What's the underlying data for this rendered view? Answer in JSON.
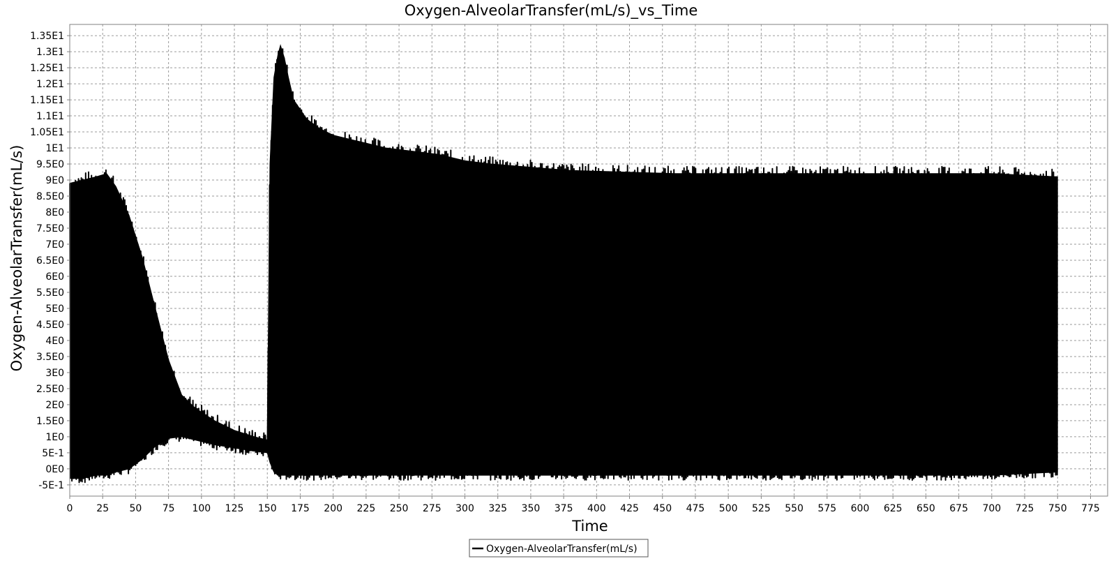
{
  "chart_data": {
    "type": "line",
    "title": "Oxygen-AlveolarTransfer(mL/s)_vs_Time",
    "xlabel": "Time",
    "ylabel": "Oxygen-AlveolarTransfer(mL/s)",
    "xlim": [
      0,
      788
    ],
    "ylim": [
      -0.85,
      13.85
    ],
    "grid": true,
    "legend_position": "bottom-center",
    "x_ticks": [
      0,
      25,
      50,
      75,
      100,
      125,
      150,
      175,
      200,
      225,
      250,
      275,
      300,
      325,
      350,
      375,
      400,
      425,
      450,
      475,
      500,
      525,
      550,
      575,
      600,
      625,
      650,
      675,
      700,
      725,
      750,
      775
    ],
    "x_tick_labels": [
      "0",
      "25",
      "50",
      "75",
      "100",
      "125",
      "150",
      "175",
      "200",
      "225",
      "250",
      "275",
      "300",
      "325",
      "350",
      "375",
      "400",
      "425",
      "450",
      "475",
      "500",
      "525",
      "550",
      "575",
      "600",
      "625",
      "650",
      "675",
      "700",
      "725",
      "750",
      "775"
    ],
    "y_ticks": [
      -0.5,
      0,
      0.5,
      1,
      1.5,
      2,
      2.5,
      3,
      3.5,
      4,
      4.5,
      5,
      5.5,
      6,
      6.5,
      7,
      7.5,
      8,
      8.5,
      9,
      9.5,
      10,
      10.5,
      11,
      11.5,
      12,
      12.5,
      13,
      13.5
    ],
    "y_tick_labels": [
      "-5E-1",
      "0E0",
      "5E-1",
      "1E0",
      "1.5E0",
      "2E0",
      "2.5E0",
      "3E0",
      "3.5E0",
      "4E0",
      "4.5E0",
      "5E0",
      "5.5E0",
      "6E0",
      "6.5E0",
      "7E0",
      "7.5E0",
      "8E0",
      "8.5E0",
      "9E0",
      "9.5E0",
      "1E1",
      "1.05E1",
      "1.1E1",
      "1.15E1",
      "1.2E1",
      "1.25E1",
      "1.3E1",
      "1.35E1"
    ],
    "series": [
      {
        "name": "Oxygen-AlveolarTransfer(mL/s)",
        "color": "#000000",
        "x": [
          0,
          10,
          20,
          28,
          35,
          45,
          55,
          65,
          75,
          85,
          95,
          110,
          125,
          140,
          150,
          152,
          155,
          158,
          160,
          163,
          166,
          170,
          180,
          190,
          200,
          220,
          240,
          260,
          280,
          300,
          320,
          350,
          380,
          420,
          460,
          500,
          550,
          600,
          650,
          700,
          750
        ],
        "upper": [
          8.9,
          9.0,
          9.1,
          9.2,
          8.8,
          7.9,
          6.6,
          5.0,
          3.4,
          2.3,
          1.9,
          1.5,
          1.2,
          1.0,
          0.9,
          9.5,
          12.2,
          12.9,
          13.2,
          12.8,
          12.2,
          11.5,
          10.9,
          10.6,
          10.4,
          10.2,
          10.0,
          9.9,
          9.8,
          9.6,
          9.5,
          9.4,
          9.3,
          9.25,
          9.2,
          9.2,
          9.2,
          9.2,
          9.2,
          9.2,
          9.1
        ],
        "lower": [
          -0.3,
          -0.3,
          -0.2,
          -0.2,
          -0.1,
          0.0,
          0.3,
          0.7,
          0.95,
          1.0,
          0.9,
          0.75,
          0.65,
          0.55,
          0.5,
          0.2,
          -0.1,
          -0.2,
          -0.2,
          -0.2,
          -0.2,
          -0.2,
          -0.2,
          -0.2,
          -0.2,
          -0.2,
          -0.2,
          -0.2,
          -0.2,
          -0.2,
          -0.2,
          -0.2,
          -0.2,
          -0.2,
          -0.2,
          -0.2,
          -0.2,
          -0.2,
          -0.2,
          -0.2,
          -0.1
        ]
      }
    ]
  }
}
